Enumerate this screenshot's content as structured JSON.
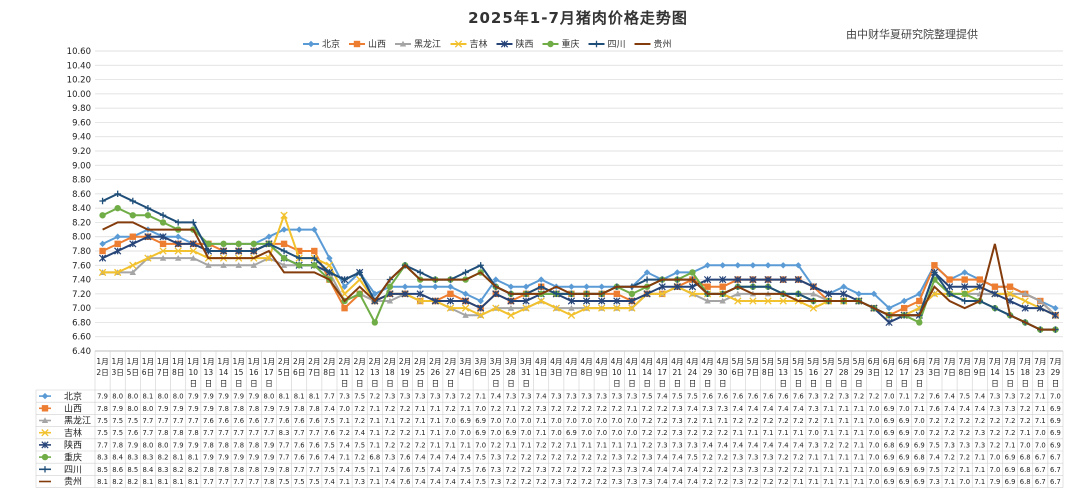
{
  "chart_data": {
    "type": "line",
    "title": "2025年1-7月猪肉价格走势图",
    "source_note": "由中财华夏研究院整理提供",
    "ylim": [
      6.4,
      10.6
    ],
    "y_ticks": [
      "6.40",
      "6.60",
      "6.80",
      "7.00",
      "7.20",
      "7.40",
      "7.60",
      "7.80",
      "8.00",
      "8.20",
      "8.40",
      "8.60",
      "8.80",
      "9.00",
      "9.20",
      "9.40",
      "9.60",
      "9.80",
      "10.00",
      "10.20",
      "10.40",
      "10.60"
    ],
    "grid": true,
    "legend_position": "top",
    "table_below": true,
    "categories": [
      [
        "1月",
        "2日"
      ],
      [
        "1月",
        "3日"
      ],
      [
        "1月",
        "5日"
      ],
      [
        "1月",
        "6日"
      ],
      [
        "1月",
        "7日"
      ],
      [
        "1月",
        "8日"
      ],
      [
        "1月",
        "10",
        "日"
      ],
      [
        "1月",
        "13",
        "日"
      ],
      [
        "1月",
        "14",
        "日"
      ],
      [
        "1月",
        "15",
        "日"
      ],
      [
        "1月",
        "16",
        "日"
      ],
      [
        "1月",
        "17",
        "日"
      ],
      [
        "2月",
        "5日"
      ],
      [
        "2月",
        "6日"
      ],
      [
        "2月",
        "7日"
      ],
      [
        "2月",
        "8日"
      ],
      [
        "2月",
        "11",
        "日"
      ],
      [
        "2月",
        "12",
        "日"
      ],
      [
        "2月",
        "13",
        "日"
      ],
      [
        "2月",
        "18",
        "日"
      ],
      [
        "2月",
        "19",
        "日"
      ],
      [
        "2月",
        "25",
        "日"
      ],
      [
        "2月",
        "26",
        "日"
      ],
      [
        "2月",
        "27",
        "日"
      ],
      [
        "3月",
        "4日"
      ],
      [
        "3月",
        "6日"
      ],
      [
        "3月",
        "25",
        "日"
      ],
      [
        "3月",
        "28",
        "日"
      ],
      [
        "3月",
        "31",
        "日"
      ],
      [
        "4月",
        "1日"
      ],
      [
        "4月",
        "3日"
      ],
      [
        "4月",
        "7日"
      ],
      [
        "4月",
        "8日"
      ],
      [
        "4月",
        "9日"
      ],
      [
        "4月",
        "10",
        "日"
      ],
      [
        "4月",
        "11",
        "日"
      ],
      [
        "4月",
        "14",
        "日"
      ],
      [
        "4月",
        "17",
        "日"
      ],
      [
        "4月",
        "21",
        "日"
      ],
      [
        "4月",
        "24",
        "日"
      ],
      [
        "4月",
        "29",
        "日"
      ],
      [
        "4月",
        "30",
        "日"
      ],
      [
        "5月",
        "6日"
      ],
      [
        "5月",
        "7日"
      ],
      [
        "5月",
        "8日"
      ],
      [
        "5月",
        "13",
        "日"
      ],
      [
        "5月",
        "15",
        "日"
      ],
      [
        "5月",
        "16",
        "日"
      ],
      [
        "5月",
        "27",
        "日"
      ],
      [
        "5月",
        "28",
        "日"
      ],
      [
        "5月",
        "29",
        "日"
      ],
      [
        "6月",
        "3日"
      ],
      [
        "6月",
        "12",
        "日"
      ],
      [
        "6月",
        "17",
        "日"
      ],
      [
        "6月",
        "23",
        "日"
      ],
      [
        "7月",
        "3日"
      ],
      [
        "7月",
        "7日"
      ],
      [
        "7月",
        "8日"
      ],
      [
        "7月",
        "9日"
      ],
      [
        "7月",
        "14",
        "日"
      ],
      [
        "7月",
        "15",
        "日"
      ],
      [
        "7月",
        "18",
        "日"
      ],
      [
        "7月",
        "23",
        "日"
      ],
      [
        "7月",
        "29",
        "日"
      ]
    ],
    "series": [
      {
        "name": "北京",
        "color": "#5B9BD5",
        "marker": "diamond",
        "values": [
          "7.9",
          "8.0",
          "8.0",
          "8.1",
          "8.0",
          "8.0",
          "7.9",
          "7.9",
          "7.9",
          "7.9",
          "7.9",
          "8.0",
          "8.1",
          "8.1",
          "8.1",
          "7.7",
          "7.3",
          "7.5",
          "7.2",
          "7.3",
          "7.3",
          "7.3",
          "7.3",
          "7.3",
          "7.2",
          "7.1",
          "7.4",
          "7.3",
          "7.3",
          "7.4",
          "7.3",
          "7.3",
          "7.3",
          "7.3",
          "7.3",
          "7.3",
          "7.5",
          "7.4",
          "7.5",
          "7.5",
          "7.6",
          "7.6",
          "7.6",
          "7.6",
          "7.6",
          "7.6",
          "7.6",
          "7.3",
          "7.2",
          "7.3",
          "7.2",
          "7.2",
          "7.0",
          "7.1",
          "7.2",
          "7.6",
          "7.4",
          "7.5",
          "7.4",
          "7.3",
          "7.3",
          "7.2",
          "7.1",
          "7.0"
        ]
      },
      {
        "name": "山西",
        "color": "#ED7D31",
        "marker": "square",
        "values": [
          "7.8",
          "7.9",
          "8.0",
          "8.0",
          "7.9",
          "7.9",
          "7.9",
          "7.9",
          "7.8",
          "7.8",
          "7.8",
          "7.9",
          "7.9",
          "7.8",
          "7.8",
          "7.4",
          "7.0",
          "7.2",
          "7.1",
          "7.2",
          "7.2",
          "7.1",
          "7.1",
          "7.2",
          "7.1",
          "7.0",
          "7.2",
          "7.1",
          "7.2",
          "7.3",
          "7.2",
          "7.2",
          "7.2",
          "7.2",
          "7.2",
          "7.1",
          "7.2",
          "7.2",
          "7.3",
          "7.4",
          "7.3",
          "7.3",
          "7.4",
          "7.4",
          "7.4",
          "7.4",
          "7.4",
          "7.3",
          "7.1",
          "7.1",
          "7.1",
          "7.0",
          "6.9",
          "7.0",
          "7.1",
          "7.6",
          "7.4",
          "7.4",
          "7.4",
          "7.3",
          "7.3",
          "7.2",
          "7.1",
          "6.9"
        ]
      },
      {
        "name": "黑龙江",
        "color": "#A5A5A5",
        "marker": "triangle",
        "values": [
          "7.5",
          "7.5",
          "7.5",
          "7.7",
          "7.7",
          "7.7",
          "7.7",
          "7.6",
          "7.6",
          "7.6",
          "7.6",
          "7.7",
          "7.6",
          "7.6",
          "7.6",
          "7.5",
          "7.1",
          "7.2",
          "7.1",
          "7.1",
          "7.2",
          "7.1",
          "7.1",
          "7.0",
          "6.9",
          "6.9",
          "7.0",
          "7.0",
          "7.0",
          "7.1",
          "7.0",
          "7.0",
          "7.0",
          "7.0",
          "7.0",
          "7.0",
          "7.2",
          "7.2",
          "7.3",
          "7.2",
          "7.1",
          "7.1",
          "7.2",
          "7.2",
          "7.2",
          "7.2",
          "7.2",
          "7.2",
          "7.1",
          "7.1",
          "7.1",
          "7.0",
          "6.9",
          "6.9",
          "7.0",
          "7.2",
          "7.2",
          "7.2",
          "7.2",
          "7.2",
          "7.2",
          "7.2",
          "7.1",
          "6.9"
        ]
      },
      {
        "name": "吉林",
        "color": "#F2C12E",
        "marker": "x",
        "values": [
          "7.5",
          "7.5",
          "7.6",
          "7.7",
          "7.8",
          "7.8",
          "7.8",
          "7.7",
          "7.7",
          "7.7",
          "7.7",
          "7.7",
          "8.3",
          "7.7",
          "7.7",
          "7.6",
          "7.2",
          "7.4",
          "7.1",
          "7.2",
          "7.2",
          "7.1",
          "7.1",
          "7.0",
          "7.0",
          "6.9",
          "7.0",
          "6.9",
          "7.0",
          "7.1",
          "7.0",
          "6.9",
          "7.0",
          "7.0",
          "7.0",
          "7.0",
          "7.2",
          "7.2",
          "7.3",
          "7.2",
          "7.2",
          "7.2",
          "7.1",
          "7.1",
          "7.1",
          "7.1",
          "7.1",
          "7.0",
          "7.1",
          "7.1",
          "7.1",
          "7.0",
          "6.9",
          "6.9",
          "7.0",
          "7.2",
          "7.2",
          "7.2",
          "7.3",
          "7.2",
          "7.2",
          "7.1",
          "7.0",
          "6.9"
        ]
      },
      {
        "name": "陕西",
        "color": "#264478",
        "marker": "star",
        "values": [
          "7.7",
          "7.8",
          "7.9",
          "8.0",
          "8.0",
          "7.9",
          "7.9",
          "7.8",
          "7.8",
          "7.8",
          "7.8",
          "7.9",
          "7.7",
          "7.6",
          "7.6",
          "7.5",
          "7.4",
          "7.5",
          "7.1",
          "7.2",
          "7.2",
          "7.2",
          "7.1",
          "7.1",
          "7.1",
          "7.0",
          "7.2",
          "7.1",
          "7.1",
          "7.2",
          "7.2",
          "7.1",
          "7.1",
          "7.1",
          "7.1",
          "7.1",
          "7.2",
          "7.3",
          "7.3",
          "7.3",
          "7.4",
          "7.4",
          "7.4",
          "7.4",
          "7.4",
          "7.4",
          "7.4",
          "7.3",
          "7.2",
          "7.2",
          "7.1",
          "7.0",
          "6.8",
          "6.9",
          "6.9",
          "7.5",
          "7.3",
          "7.3",
          "7.3",
          "7.2",
          "7.1",
          "7.0",
          "7.0",
          "6.9"
        ]
      },
      {
        "name": "重庆",
        "color": "#70AD47",
        "marker": "circle",
        "values": [
          "8.3",
          "8.4",
          "8.3",
          "8.3",
          "8.2",
          "8.1",
          "8.1",
          "7.9",
          "7.9",
          "7.9",
          "7.9",
          "7.9",
          "7.7",
          "7.6",
          "7.6",
          "7.4",
          "7.1",
          "7.2",
          "6.8",
          "7.3",
          "7.6",
          "7.4",
          "7.4",
          "7.4",
          "7.4",
          "7.5",
          "7.3",
          "7.2",
          "7.2",
          "7.2",
          "7.2",
          "7.2",
          "7.2",
          "7.2",
          "7.3",
          "7.2",
          "7.3",
          "7.4",
          "7.4",
          "7.5",
          "7.2",
          "7.2",
          "7.3",
          "7.3",
          "7.3",
          "7.2",
          "7.2",
          "7.1",
          "7.1",
          "7.1",
          "7.1",
          "7.0",
          "6.9",
          "6.9",
          "6.8",
          "7.4",
          "7.2",
          "7.2",
          "7.1",
          "7.0",
          "6.9",
          "6.8",
          "6.7",
          "6.7"
        ]
      },
      {
        "name": "四川",
        "color": "#1F4E79",
        "marker": "plus",
        "values": [
          "8.5",
          "8.6",
          "8.5",
          "8.4",
          "8.3",
          "8.2",
          "8.2",
          "7.8",
          "7.8",
          "7.8",
          "7.8",
          "7.9",
          "7.8",
          "7.7",
          "7.7",
          "7.5",
          "7.4",
          "7.5",
          "7.1",
          "7.4",
          "7.6",
          "7.5",
          "7.4",
          "7.4",
          "7.5",
          "7.6",
          "7.3",
          "7.2",
          "7.2",
          "7.3",
          "7.2",
          "7.2",
          "7.2",
          "7.2",
          "7.3",
          "7.3",
          "7.4",
          "7.4",
          "7.4",
          "7.4",
          "7.2",
          "7.2",
          "7.3",
          "7.3",
          "7.3",
          "7.2",
          "7.2",
          "7.1",
          "7.1",
          "7.1",
          "7.1",
          "7.0",
          "6.9",
          "6.9",
          "6.9",
          "7.5",
          "7.2",
          "7.1",
          "7.1",
          "7.0",
          "6.9",
          "6.8",
          "6.7",
          "6.7"
        ]
      },
      {
        "name": "贵州",
        "color": "#843C0C",
        "marker": "none",
        "values": [
          "8.1",
          "8.2",
          "8.2",
          "8.1",
          "8.1",
          "8.1",
          "8.1",
          "7.7",
          "7.7",
          "7.7",
          "7.7",
          "7.8",
          "7.5",
          "7.5",
          "7.5",
          "7.4",
          "7.1",
          "7.3",
          "7.1",
          "7.4",
          "7.6",
          "7.4",
          "7.4",
          "7.4",
          "7.4",
          "7.5",
          "7.3",
          "7.2",
          "7.2",
          "7.2",
          "7.3",
          "7.2",
          "7.2",
          "7.2",
          "7.3",
          "7.3",
          "7.3",
          "7.4",
          "7.4",
          "7.4",
          "7.2",
          "7.2",
          "7.3",
          "7.2",
          "7.2",
          "7.2",
          "7.1",
          "7.1",
          "7.1",
          "7.1",
          "7.1",
          "7.0",
          "6.9",
          "6.9",
          "6.9",
          "7.3",
          "7.1",
          "7.0",
          "7.1",
          "7.9",
          "6.9",
          "6.8",
          "6.7",
          "6.7"
        ]
      }
    ]
  }
}
